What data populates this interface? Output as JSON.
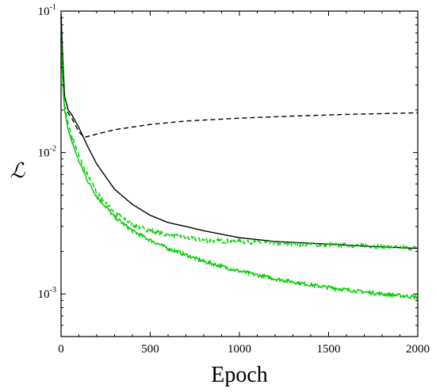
{
  "chart_data": {
    "type": "line",
    "title": "",
    "xlabel": "Epoch",
    "ylabel": "ℒ",
    "xlim": [
      0,
      2000
    ],
    "ylim": [
      0.0005,
      0.1
    ],
    "yscale": "log",
    "grid": false,
    "legend": "none",
    "x_ticks": [
      0,
      500,
      1000,
      1500,
      2000
    ],
    "x_tick_labels": [
      "0",
      "500",
      "1000",
      "1500",
      "2000"
    ],
    "y_ticks": [
      {
        "value": 0.001,
        "base": "10",
        "exp": "-3"
      },
      {
        "value": 0.01,
        "base": "10",
        "exp": "-2"
      },
      {
        "value": 0.1,
        "base": "10",
        "exp": "-1"
      }
    ],
    "series": [
      {
        "color": "#000000",
        "style": "solid",
        "x": [
          0,
          10,
          20,
          40,
          60,
          100,
          150,
          200,
          300,
          400,
          500,
          600,
          700,
          800,
          1000,
          1200,
          1500,
          1700,
          2000
        ],
        "y": [
          0.095,
          0.045,
          0.025,
          0.02,
          0.0185,
          0.015,
          0.011,
          0.0083,
          0.0055,
          0.0043,
          0.0036,
          0.0032,
          0.003,
          0.0028,
          0.0025,
          0.00235,
          0.00225,
          0.00218,
          0.0021
        ]
      },
      {
        "color": "#000000",
        "style": "dashed",
        "x": [
          0,
          10,
          20,
          40,
          60,
          100,
          130,
          200,
          300,
          500,
          700,
          1000,
          1300,
          1600,
          2000
        ],
        "y": [
          0.09,
          0.03,
          0.021,
          0.019,
          0.0175,
          0.014,
          0.0128,
          0.0135,
          0.0145,
          0.0158,
          0.0167,
          0.0175,
          0.0181,
          0.0186,
          0.0191
        ]
      },
      {
        "color": "#00cc00",
        "style": "dashed",
        "x": [
          0,
          10,
          20,
          40,
          60,
          100,
          150,
          200,
          300,
          400,
          500,
          600,
          800,
          1000,
          1200,
          1500,
          1700,
          2000
        ],
        "y": [
          0.07,
          0.035,
          0.021,
          0.016,
          0.013,
          0.0095,
          0.0068,
          0.0052,
          0.0038,
          0.0031,
          0.0028,
          0.0026,
          0.0024,
          0.00235,
          0.00228,
          0.00222,
          0.0022,
          0.0021
        ]
      },
      {
        "color": "#00cc00",
        "style": "solid",
        "x": [
          0,
          10,
          20,
          40,
          60,
          100,
          150,
          200,
          300,
          400,
          500,
          600,
          800,
          1000,
          1200,
          1400,
          1600,
          1800,
          2000
        ],
        "y": [
          0.065,
          0.03,
          0.02,
          0.0145,
          0.012,
          0.0087,
          0.0063,
          0.0049,
          0.0035,
          0.0028,
          0.0024,
          0.0021,
          0.0017,
          0.00145,
          0.00128,
          0.00116,
          0.00107,
          0.001,
          0.00095
        ]
      }
    ]
  }
}
